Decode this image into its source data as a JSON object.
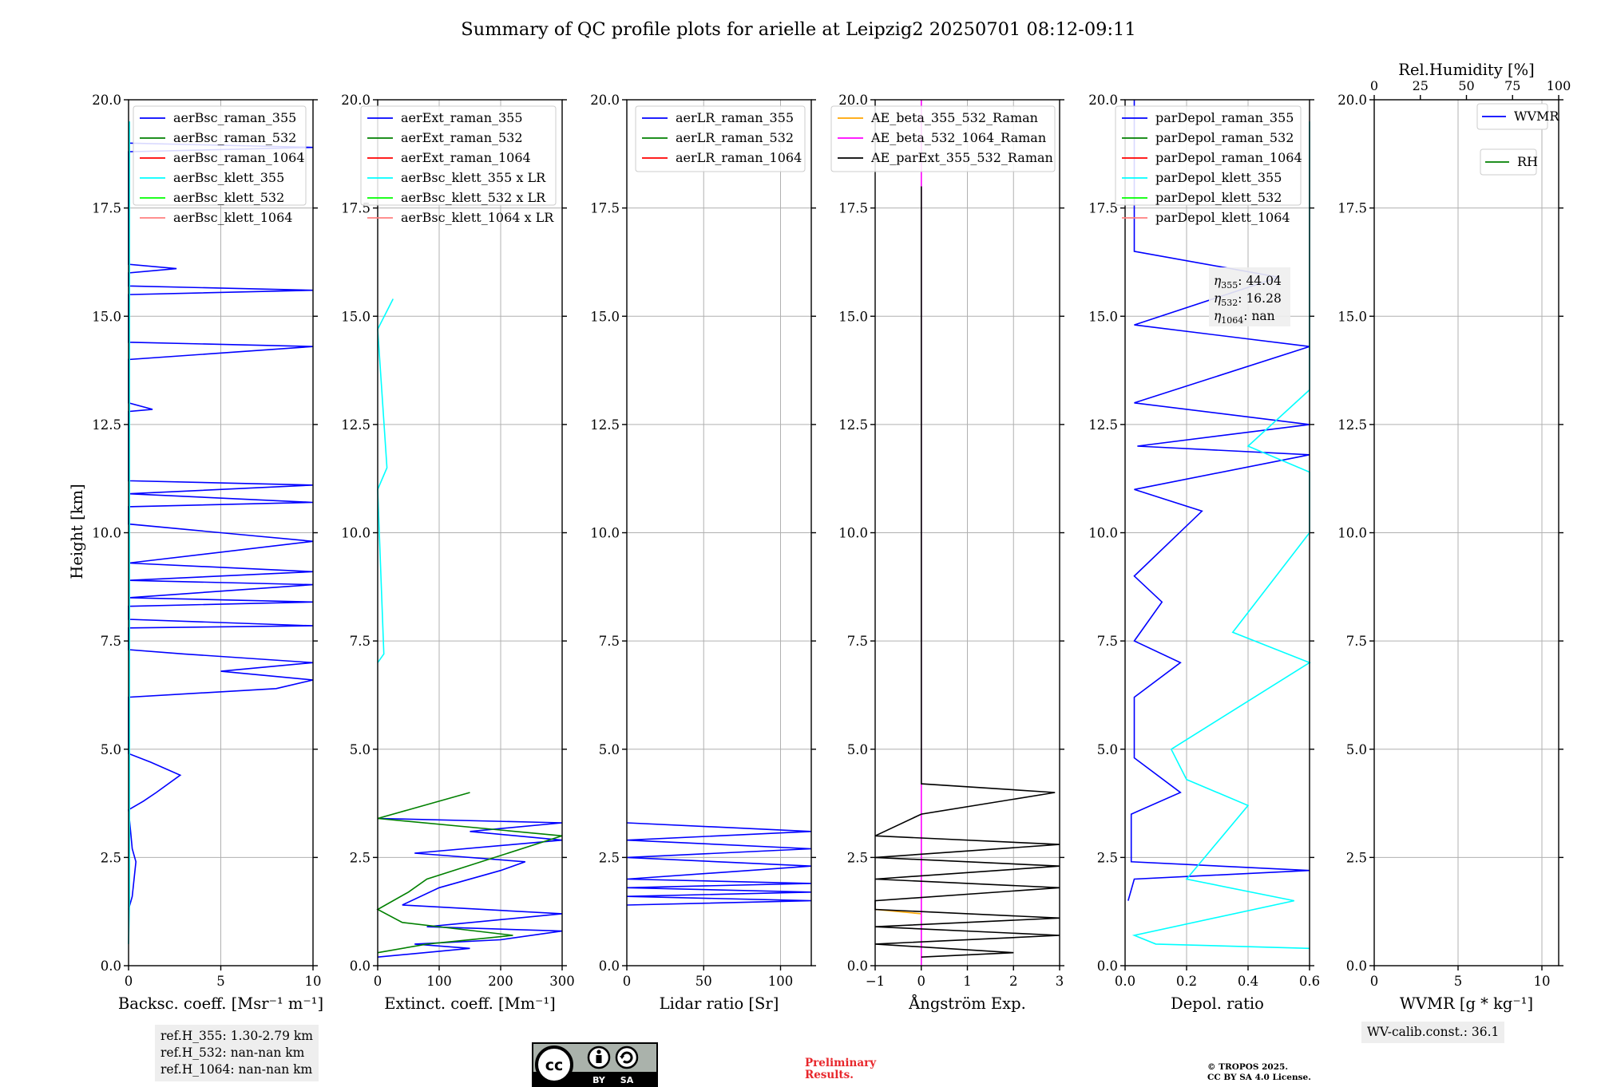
{
  "title": "Summary of QC profile plots for arielle at Leipzig2 20250701 08:12-09:11",
  "y_label": "Height [km]",
  "info": {
    "refH": [
      "ref.H_355: 1.30-2.79 km",
      "ref.H_532: nan-nan km",
      "ref.H_1064: nan-nan km"
    ],
    "wv_calib": "WV-calib.const.: 36.1",
    "eta": [
      "355",
      "44.04",
      "532",
      "16.28",
      "1064",
      "nan"
    ],
    "preliminary": [
      "Preliminary",
      "Results."
    ],
    "copyright": [
      "© TROPOS 2025.",
      "CC BY SA 4.0 License."
    ],
    "cc_badge": [
      "BY",
      "SA"
    ]
  },
  "colors": {
    "blue": "#0000ff",
    "green": "#008000",
    "red": "#ff0000",
    "cyan": "#00ffff",
    "lime": "#00ff00",
    "pink": "#ff7f7f",
    "orange": "#ffa500",
    "magenta": "#ff00ff",
    "black": "#000000"
  },
  "chart_data": [
    {
      "type": "line",
      "xlabel": "Backsc. coeff. [Msr⁻¹ m⁻¹]",
      "ylabel": "Height [km]",
      "xlim": [
        0,
        10
      ],
      "ylim": [
        0,
        20
      ],
      "xticks": [
        "0",
        "5",
        "10"
      ],
      "yticks": [
        "0.0",
        "2.5",
        "5.0",
        "7.5",
        "10.0",
        "12.5",
        "15.0",
        "17.5",
        "20.0"
      ],
      "grid": true,
      "legend_position": "top-right",
      "legend": [
        {
          "name": "aerBsc_raman_355",
          "color": "#0000ff"
        },
        {
          "name": "aerBsc_raman_532",
          "color": "#008000"
        },
        {
          "name": "aerBsc_raman_1064",
          "color": "#ff0000"
        },
        {
          "name": "aerBsc_klett_355",
          "color": "#00ffff"
        },
        {
          "name": "aerBsc_klett_532",
          "color": "#00ff00"
        },
        {
          "name": "aerBsc_klett_1064",
          "color": "#ff7f7f"
        }
      ],
      "series": [
        {
          "name": "aerBsc_raman_355",
          "color": "#0000ff",
          "points": [
            [
              0,
              1.3
            ],
            [
              0.2,
              1.6
            ],
            [
              0.3,
              2.0
            ],
            [
              0.4,
              2.4
            ],
            [
              0.2,
              2.7
            ],
            [
              0,
              3.6
            ],
            [
              0.8,
              3.8
            ],
            [
              1.5,
              4.0
            ],
            [
              2.8,
              4.4
            ],
            [
              1.2,
              4.7
            ],
            [
              0,
              4.9
            ],
            [
              0,
              6.2
            ],
            [
              8,
              6.4
            ],
            [
              10,
              6.6
            ],
            [
              5,
              6.8
            ],
            [
              10,
              7.0
            ],
            [
              3,
              7.2
            ],
            [
              0,
              7.3
            ],
            [
              0,
              7.8
            ],
            [
              10,
              7.85
            ],
            [
              0,
              8.0
            ],
            [
              0,
              8.3
            ],
            [
              10,
              8.4
            ],
            [
              0,
              8.5
            ],
            [
              10,
              8.8
            ],
            [
              0,
              8.9
            ],
            [
              10,
              9.1
            ],
            [
              0,
              9.3
            ],
            [
              10,
              9.8
            ],
            [
              5,
              10.0
            ],
            [
              0,
              10.2
            ],
            [
              0,
              10.6
            ],
            [
              10,
              10.7
            ],
            [
              0,
              10.9
            ],
            [
              10,
              11.1
            ],
            [
              0,
              11.2
            ],
            [
              0,
              12.8
            ],
            [
              1.3,
              12.85
            ],
            [
              0,
              13.0
            ],
            [
              0,
              14.0
            ],
            [
              10,
              14.3
            ],
            [
              0,
              14.4
            ],
            [
              0,
              15.5
            ],
            [
              10,
              15.6
            ],
            [
              0,
              15.7
            ],
            [
              0,
              16.0
            ],
            [
              2.6,
              16.1
            ],
            [
              0,
              16.2
            ],
            [
              0,
              18.8
            ],
            [
              10,
              18.9
            ],
            [
              0,
              19.0
            ]
          ]
        },
        {
          "name": "aerBsc_klett_355",
          "color": "#00ffff",
          "points": [
            [
              0,
              0.5
            ],
            [
              0.05,
              1.5
            ],
            [
              0.05,
              3.0
            ],
            [
              0.05,
              10.0
            ],
            [
              0.05,
              19.5
            ]
          ]
        }
      ]
    },
    {
      "type": "line",
      "xlabel": "Extinct. coeff. [Mm⁻¹]",
      "xlim": [
        0,
        300
      ],
      "ylim": [
        0,
        20
      ],
      "xticks": [
        "0",
        "100",
        "200",
        "300"
      ],
      "yticks": [
        "0.0",
        "2.5",
        "5.0",
        "7.5",
        "10.0",
        "12.5",
        "15.0",
        "17.5",
        "20.0"
      ],
      "grid": true,
      "legend_position": "top-right",
      "legend": [
        {
          "name": "aerExt_raman_355",
          "color": "#0000ff"
        },
        {
          "name": "aerExt_raman_532",
          "color": "#008000"
        },
        {
          "name": "aerExt_raman_1064",
          "color": "#ff0000"
        },
        {
          "name": "aerBsc_klett_355 x LR",
          "color": "#00ffff"
        },
        {
          "name": "aerBsc_klett_532 x LR",
          "color": "#00ff00"
        },
        {
          "name": "aerBsc_klett_1064 x LR",
          "color": "#ff7f7f"
        }
      ],
      "series": [
        {
          "name": "aerExt_raman_355",
          "color": "#0000ff",
          "points": [
            [
              0,
              0.2
            ],
            [
              150,
              0.4
            ],
            [
              60,
              0.5
            ],
            [
              200,
              0.6
            ],
            [
              300,
              0.8
            ],
            [
              80,
              0.9
            ],
            [
              300,
              1.2
            ],
            [
              40,
              1.4
            ],
            [
              100,
              1.8
            ],
            [
              200,
              2.2
            ],
            [
              240,
              2.4
            ],
            [
              60,
              2.6
            ],
            [
              300,
              2.9
            ],
            [
              150,
              3.1
            ],
            [
              300,
              3.3
            ],
            [
              0,
              3.4
            ]
          ]
        },
        {
          "name": "aerExt_raman_532",
          "color": "#008000",
          "points": [
            [
              0,
              0.3
            ],
            [
              80,
              0.5
            ],
            [
              220,
              0.7
            ],
            [
              40,
              1.0
            ],
            [
              0,
              1.3
            ],
            [
              50,
              1.7
            ],
            [
              80,
              2.0
            ],
            [
              300,
              3.0
            ],
            [
              0,
              3.4
            ],
            [
              150,
              4.0
            ]
          ]
        },
        {
          "name": "aerBsc_klett_355 x LR",
          "color": "#00ffff",
          "points": [
            [
              0,
              7.0
            ],
            [
              10,
              7.2
            ],
            [
              0,
              11.0
            ],
            [
              15,
              11.5
            ],
            [
              0,
              14.7
            ],
            [
              25,
              15.4
            ]
          ]
        }
      ]
    },
    {
      "type": "line",
      "xlabel": "Lidar ratio [Sr]",
      "xlim": [
        0,
        120
      ],
      "ylim": [
        0,
        20
      ],
      "xticks": [
        "0",
        "50",
        "100"
      ],
      "yticks": [
        "0.0",
        "2.5",
        "5.0",
        "7.5",
        "10.0",
        "12.5",
        "15.0",
        "17.5",
        "20.0"
      ],
      "grid": true,
      "legend_position": "top-right",
      "legend": [
        {
          "name": "aerLR_raman_355",
          "color": "#0000ff"
        },
        {
          "name": "aerLR_raman_532",
          "color": "#008000"
        },
        {
          "name": "aerLR_raman_1064",
          "color": "#ff0000"
        }
      ],
      "series": [
        {
          "name": "aerLR_raman_355",
          "color": "#0000ff",
          "points": [
            [
              0,
              1.4
            ],
            [
              120,
              1.5
            ],
            [
              0,
              1.6
            ],
            [
              120,
              1.7
            ],
            [
              0,
              1.8
            ],
            [
              120,
              1.9
            ],
            [
              0,
              2.0
            ],
            [
              120,
              2.3
            ],
            [
              0,
              2.5
            ],
            [
              120,
              2.7
            ],
            [
              0,
              2.9
            ],
            [
              120,
              3.1
            ],
            [
              0,
              3.3
            ]
          ]
        }
      ]
    },
    {
      "type": "line",
      "xlabel": "Ångström Exp.",
      "xlim": [
        -1,
        3
      ],
      "ylim": [
        0,
        20
      ],
      "xticks": [
        "−1",
        "0",
        "1",
        "2",
        "3"
      ],
      "yticks": [
        "0.0",
        "2.5",
        "5.0",
        "7.5",
        "10.0",
        "12.5",
        "15.0",
        "17.5",
        "20.0"
      ],
      "grid": true,
      "legend_position": "top-right",
      "legend": [
        {
          "name": "AE_beta_355_532_Raman",
          "color": "#ffa500"
        },
        {
          "name": "AE_beta_532_1064_Raman",
          "color": "#ff00ff"
        },
        {
          "name": "AE_parExt_355_532_Raman",
          "color": "#000000"
        }
      ],
      "series": [
        {
          "name": "AE_beta_355_532_Raman",
          "color": "#ffa500",
          "points": [
            [
              -1,
              1.3
            ],
            [
              0,
              1.2
            ]
          ]
        },
        {
          "name": "AE_beta_532_1064_Raman",
          "color": "#ff00ff",
          "points": [
            [
              0,
              0.0
            ],
            [
              0,
              20.0
            ]
          ]
        },
        {
          "name": "AE_parExt_355_532_Raman",
          "color": "#000000",
          "points": [
            [
              0,
              0.2
            ],
            [
              2,
              0.3
            ],
            [
              -1,
              0.5
            ],
            [
              3,
              0.7
            ],
            [
              -1,
              0.9
            ],
            [
              3,
              1.1
            ],
            [
              -1,
              1.3
            ],
            [
              -1,
              1.5
            ],
            [
              3,
              1.8
            ],
            [
              -1,
              2.0
            ],
            [
              3,
              2.3
            ],
            [
              -1,
              2.5
            ],
            [
              3,
              2.8
            ],
            [
              -1,
              3.0
            ],
            [
              0,
              3.5
            ],
            [
              2.9,
              4.0
            ],
            [
              0,
              4.2
            ],
            [
              0,
              18.0
            ]
          ]
        }
      ]
    },
    {
      "type": "line",
      "xlabel": "Depol. ratio",
      "xlim": [
        0,
        0.6
      ],
      "ylim": [
        0,
        20
      ],
      "xticks": [
        "0.0",
        "0.2",
        "0.4",
        "0.6"
      ],
      "yticks": [
        "0.0",
        "2.5",
        "5.0",
        "7.5",
        "10.0",
        "12.5",
        "15.0",
        "17.5",
        "20.0"
      ],
      "grid": true,
      "legend_position": "top-left",
      "legend": [
        {
          "name": "parDepol_raman_355",
          "color": "#0000ff"
        },
        {
          "name": "parDepol_raman_532",
          "color": "#008000"
        },
        {
          "name": "parDepol_raman_1064",
          "color": "#ff0000"
        },
        {
          "name": "parDepol_klett_355",
          "color": "#00ffff"
        },
        {
          "name": "parDepol_klett_532",
          "color": "#00ff00"
        },
        {
          "name": "parDepol_klett_1064",
          "color": "#ff7f7f"
        }
      ],
      "series": [
        {
          "name": "parDepol_raman_355",
          "color": "#0000ff",
          "points": [
            [
              0.01,
              1.5
            ],
            [
              0.03,
              2.0
            ],
            [
              0.6,
              2.2
            ],
            [
              0.02,
              2.4
            ],
            [
              0.02,
              3.5
            ],
            [
              0.18,
              4.0
            ],
            [
              0.03,
              4.8
            ],
            [
              0.03,
              6.2
            ],
            [
              0.18,
              7.0
            ],
            [
              0.03,
              7.5
            ],
            [
              0.12,
              8.4
            ],
            [
              0.03,
              9.0
            ],
            [
              0.25,
              10.5
            ],
            [
              0.03,
              11.0
            ],
            [
              0.6,
              11.8
            ],
            [
              0.04,
              12.0
            ],
            [
              0.6,
              12.5
            ],
            [
              0.03,
              13.0
            ],
            [
              0.6,
              14.3
            ],
            [
              0.03,
              14.8
            ],
            [
              0.5,
              15.9
            ],
            [
              0.03,
              16.5
            ],
            [
              0.03,
              20.0
            ]
          ]
        },
        {
          "name": "parDepol_klett_355",
          "color": "#00ffff",
          "points": [
            [
              0.6,
              0.4
            ],
            [
              0.1,
              0.5
            ],
            [
              0.03,
              0.7
            ],
            [
              0.55,
              1.5
            ],
            [
              0.2,
              2.0
            ],
            [
              0.4,
              3.7
            ],
            [
              0.2,
              4.3
            ],
            [
              0.15,
              5.0
            ],
            [
              0.6,
              7.0
            ],
            [
              0.35,
              7.7
            ],
            [
              0.6,
              10.0
            ],
            [
              0.6,
              11.4
            ],
            [
              0.4,
              12.0
            ],
            [
              0.6,
              13.3
            ],
            [
              0.6,
              14.5
            ],
            [
              0.6,
              15.5
            ],
            [
              0.6,
              16.5
            ],
            [
              0.6,
              19.5
            ]
          ]
        }
      ]
    },
    {
      "type": "line",
      "xlabel": "WVMR [g * kg⁻¹]",
      "x2label": "Rel.Humidity [%]",
      "xlim": [
        0,
        11
      ],
      "ylim": [
        0,
        20
      ],
      "x2lim": [
        0,
        100
      ],
      "xticks": [
        "0",
        "5",
        "10"
      ],
      "x2ticks": [
        "0",
        "25",
        "50",
        "75",
        "100"
      ],
      "yticks": [
        "0.0",
        "2.5",
        "5.0",
        "7.5",
        "10.0",
        "12.5",
        "15.0",
        "17.5",
        "20.0"
      ],
      "grid": true,
      "legend_position": "top-right",
      "legend": [
        {
          "name": "WVMR",
          "color": "#0000ff"
        },
        {
          "name": "RH",
          "color": "#008000"
        }
      ],
      "series": []
    }
  ]
}
